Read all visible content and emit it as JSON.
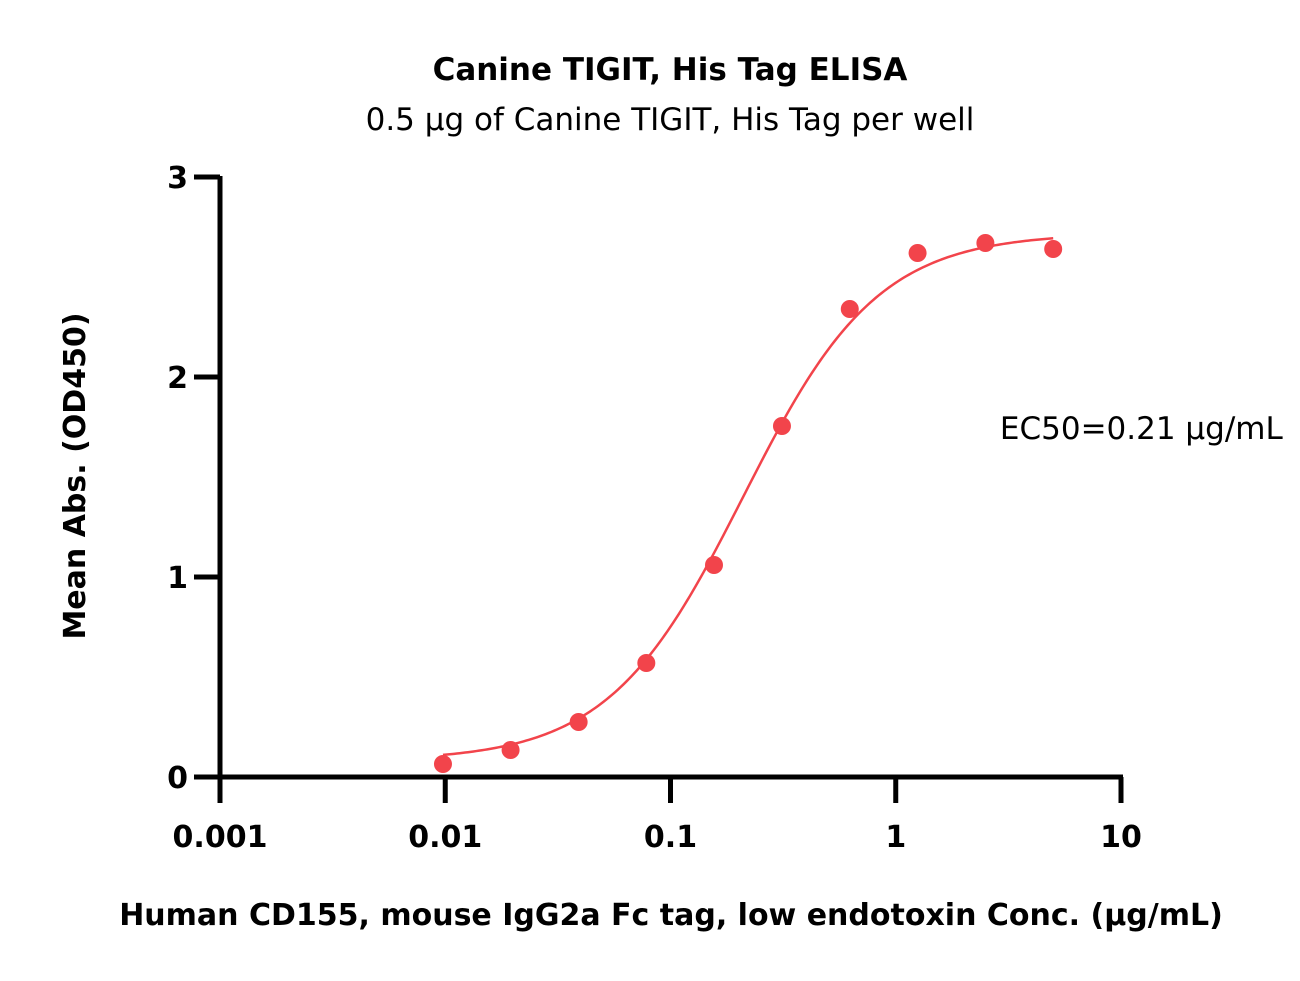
{
  "chart_data": {
    "type": "scatter",
    "title": "Canine TIGIT, His Tag ELISA",
    "subtitle": "0.5 µg of Canine TIGIT, His Tag per well",
    "xlabel": "Human CD155, mouse IgG2a Fc tag, low endotoxin Conc. (µg/mL)",
    "ylabel": "Mean Abs. (OD450)",
    "x_scale": "log",
    "xlim": [
      0.001,
      10
    ],
    "ylim": [
      0,
      3
    ],
    "x_ticks": [
      {
        "value": 0.001,
        "label": "0.001"
      },
      {
        "value": 0.01,
        "label": "0.01"
      },
      {
        "value": 0.1,
        "label": "0.1"
      },
      {
        "value": 1,
        "label": "1"
      },
      {
        "value": 10,
        "label": "10"
      }
    ],
    "y_ticks": [
      {
        "value": 0,
        "label": "0"
      },
      {
        "value": 1,
        "label": "1"
      },
      {
        "value": 2,
        "label": "2"
      },
      {
        "value": 3,
        "label": "3"
      }
    ],
    "grid": false,
    "series": [
      {
        "color": "#F2444B",
        "points": [
          {
            "x": 0.00977,
            "y": 0.065
          },
          {
            "x": 0.0195,
            "y": 0.135
          },
          {
            "x": 0.0391,
            "y": 0.275
          },
          {
            "x": 0.0781,
            "y": 0.57
          },
          {
            "x": 0.156,
            "y": 1.06
          },
          {
            "x": 0.3125,
            "y": 1.755
          },
          {
            "x": 0.625,
            "y": 2.34
          },
          {
            "x": 1.25,
            "y": 2.62
          },
          {
            "x": 2.5,
            "y": 2.67
          },
          {
            "x": 5,
            "y": 2.64
          }
        ],
        "fit_curve": {
          "model": "4PL",
          "bottom": 0.08,
          "top": 2.72,
          "ec50": 0.21,
          "hill": 1.45,
          "x_range": [
            0.00977,
            5
          ]
        }
      }
    ],
    "annotations": [
      {
        "text": "EC50=0.21 µg/mL",
        "x": 2.9,
        "y": 1.69
      }
    ]
  }
}
